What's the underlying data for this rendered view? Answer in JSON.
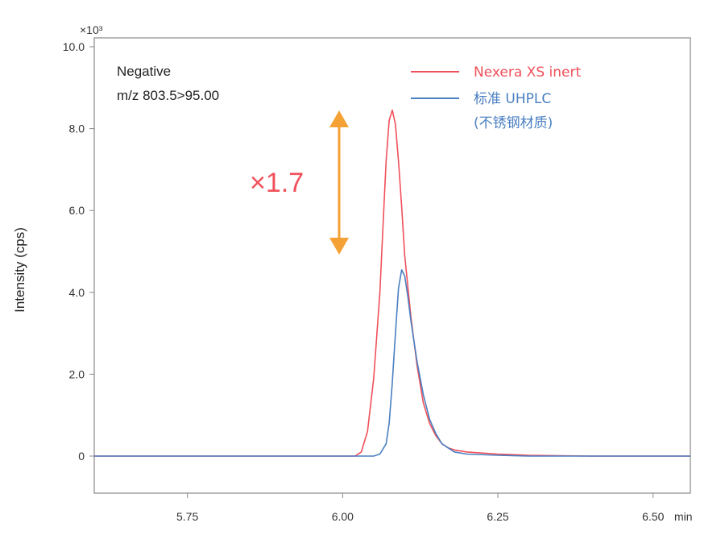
{
  "chart_data": {
    "type": "line",
    "xlabel": "min",
    "ylabel": "Intensity (cps)",
    "y_multiplier": "×10³",
    "xlim": [
      5.6,
      6.56
    ],
    "ylim": [
      -0.9,
      10.0
    ],
    "x_ticks": [
      5.75,
      6.0,
      6.25,
      6.5
    ],
    "x_tick_labels": [
      "5.75",
      "6.00",
      "6.25",
      "6.50"
    ],
    "y_ticks": [
      0,
      2.0,
      4.0,
      6.0,
      8.0,
      10.0
    ],
    "y_tick_labels": [
      "0",
      "2.0",
      "4.0",
      "6.0",
      "8.0",
      "10.0"
    ],
    "grid": false,
    "legend_position": "top-right",
    "annotations": {
      "mode": "Negative",
      "transition": "m/z 803.5>95.00",
      "ratio": "×1.7"
    },
    "series": [
      {
        "name": "Nexera XS inert",
        "color": "#f0505a",
        "x": [
          5.6,
          6.0,
          6.02,
          6.03,
          6.04,
          6.05,
          6.06,
          6.065,
          6.07,
          6.075,
          6.08,
          6.085,
          6.09,
          6.095,
          6.1,
          6.11,
          6.12,
          6.13,
          6.14,
          6.15,
          6.16,
          6.17,
          6.18,
          6.2,
          6.25,
          6.3,
          6.4,
          6.56
        ],
        "y": [
          0,
          0,
          0,
          0.1,
          0.6,
          1.9,
          4.0,
          5.6,
          7.2,
          8.2,
          8.45,
          8.1,
          7.2,
          6.1,
          4.9,
          3.4,
          2.2,
          1.3,
          0.8,
          0.5,
          0.3,
          0.2,
          0.15,
          0.1,
          0.05,
          0.02,
          0,
          0
        ]
      },
      {
        "name": "标准 UHPLC",
        "name_line2": "(不锈钢材质)",
        "color": "#4a7fc1",
        "x": [
          5.6,
          6.05,
          6.06,
          6.07,
          6.075,
          6.08,
          6.085,
          6.09,
          6.095,
          6.1,
          6.105,
          6.11,
          6.12,
          6.13,
          6.14,
          6.15,
          6.16,
          6.18,
          6.2,
          6.25,
          6.3,
          6.4,
          6.56
        ],
        "y": [
          0,
          0,
          0.05,
          0.3,
          0.8,
          1.8,
          3.0,
          4.1,
          4.55,
          4.4,
          3.9,
          3.3,
          2.3,
          1.5,
          0.9,
          0.55,
          0.3,
          0.1,
          0.05,
          0.02,
          0,
          0,
          0
        ]
      }
    ],
    "arrow_color": "#f4a236",
    "ratio_color": "#f0505a",
    "axis_color": "#888888"
  }
}
